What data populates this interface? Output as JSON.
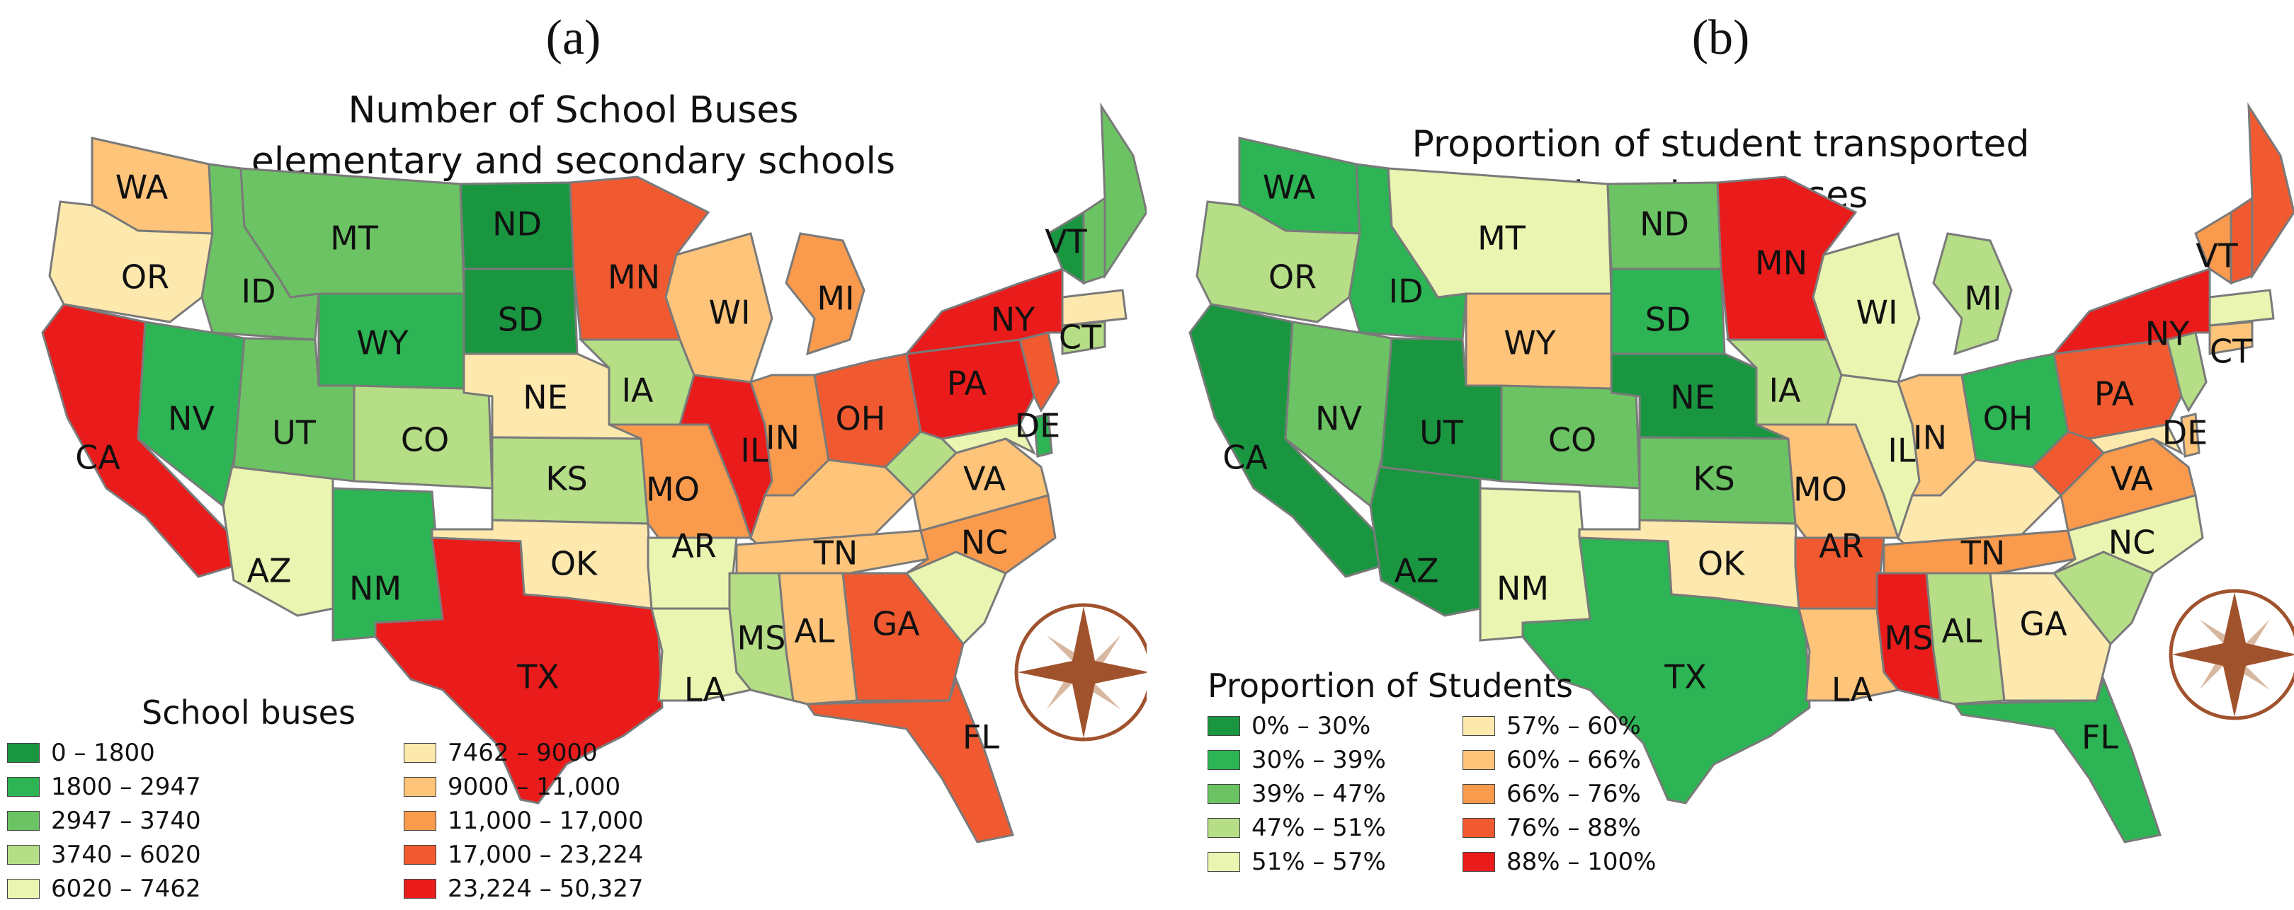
{
  "panels": [
    {
      "label": "(a)",
      "title_line1": "Number of School Buses",
      "title_line2": "elementary and secondary schools",
      "legend_title": "School buses",
      "legend": [
        {
          "label": "0 – 1800",
          "color": "#1a9641"
        },
        {
          "label": "1800 – 2947",
          "color": "#2db454"
        },
        {
          "label": "2947 – 3740",
          "color": "#6cc363"
        },
        {
          "label": "3740 – 6020",
          "color": "#b5de86"
        },
        {
          "label": "6020 – 7462",
          "color": "#e9f5b0"
        },
        {
          "label": "7462 – 9000",
          "color": "#fde8ae"
        },
        {
          "label": "9000 – 11,000",
          "color": "#fdc47a"
        },
        {
          "label": "11,000 – 17,000",
          "color": "#f99a4d"
        },
        {
          "label": "17,000 – 23,224",
          "color": "#f15a30"
        },
        {
          "label": "23,224 – 50,327",
          "color": "#ea1b1b"
        }
      ],
      "states": [
        {
          "id": "WA",
          "class": 6
        },
        {
          "id": "OR",
          "class": 5
        },
        {
          "id": "CA",
          "class": 9
        },
        {
          "id": "ID",
          "class": 2
        },
        {
          "id": "NV",
          "class": 1
        },
        {
          "id": "AZ",
          "class": 4
        },
        {
          "id": "MT",
          "class": 2
        },
        {
          "id": "WY",
          "class": 1
        },
        {
          "id": "UT",
          "class": 2
        },
        {
          "id": "CO",
          "class": 3
        },
        {
          "id": "NM",
          "class": 1
        },
        {
          "id": "ND",
          "class": 0
        },
        {
          "id": "SD",
          "class": 0
        },
        {
          "id": "NE",
          "class": 5
        },
        {
          "id": "KS",
          "class": 3
        },
        {
          "id": "OK",
          "class": 5
        },
        {
          "id": "TX",
          "class": 9
        },
        {
          "id": "MN",
          "class": 8
        },
        {
          "id": "IA",
          "class": 3
        },
        {
          "id": "MO",
          "class": 7
        },
        {
          "id": "AR",
          "class": 4
        },
        {
          "id": "LA",
          "class": 4
        },
        {
          "id": "WI",
          "class": 6
        },
        {
          "id": "IL",
          "class": 9
        },
        {
          "id": "MI",
          "class": 7
        },
        {
          "id": "IN",
          "class": 7
        },
        {
          "id": "OH",
          "class": 8
        },
        {
          "id": "KY",
          "class": 6
        },
        {
          "id": "TN",
          "class": 6
        },
        {
          "id": "MS",
          "class": 3
        },
        {
          "id": "AL",
          "class": 6
        },
        {
          "id": "GA",
          "class": 8
        },
        {
          "id": "FL",
          "class": 8
        },
        {
          "id": "SC",
          "class": 4
        },
        {
          "id": "NC",
          "class": 7
        },
        {
          "id": "VA",
          "class": 6
        },
        {
          "id": "WV",
          "class": 3
        },
        {
          "id": "PA",
          "class": 9
        },
        {
          "id": "NY",
          "class": 9
        },
        {
          "id": "VT",
          "class": 0
        },
        {
          "id": "NH",
          "class": 2
        },
        {
          "id": "ME",
          "class": 2
        },
        {
          "id": "MA",
          "class": 5
        },
        {
          "id": "CT",
          "class": 3
        },
        {
          "id": "NJ",
          "class": 8
        },
        {
          "id": "DE",
          "class": 1
        },
        {
          "id": "MD",
          "class": 4
        }
      ]
    },
    {
      "label": "(b)",
      "title_line1": "Proportion of student transported",
      "title_line2": "by school buses",
      "legend_title": "Proportion of Students",
      "legend": [
        {
          "label": "0% – 30%",
          "color": "#1a9641"
        },
        {
          "label": "30% – 39%",
          "color": "#2db454"
        },
        {
          "label": "39% – 47%",
          "color": "#6cc363"
        },
        {
          "label": "47% – 51%",
          "color": "#b5de86"
        },
        {
          "label": "51% – 57%",
          "color": "#e9f5b0"
        },
        {
          "label": "57% – 60%",
          "color": "#fde8ae"
        },
        {
          "label": "60% – 66%",
          "color": "#fdc47a"
        },
        {
          "label": "66% – 76%",
          "color": "#f99a4d"
        },
        {
          "label": "76% – 88%",
          "color": "#f15a30"
        },
        {
          "label": "88% – 100%",
          "color": "#ea1b1b"
        }
      ],
      "states": [
        {
          "id": "WA",
          "class": 1
        },
        {
          "id": "OR",
          "class": 3
        },
        {
          "id": "CA",
          "class": 0
        },
        {
          "id": "ID",
          "class": 1
        },
        {
          "id": "NV",
          "class": 2
        },
        {
          "id": "AZ",
          "class": 0
        },
        {
          "id": "MT",
          "class": 4
        },
        {
          "id": "WY",
          "class": 6
        },
        {
          "id": "UT",
          "class": 0
        },
        {
          "id": "CO",
          "class": 2
        },
        {
          "id": "NM",
          "class": 4
        },
        {
          "id": "ND",
          "class": 2
        },
        {
          "id": "SD",
          "class": 1
        },
        {
          "id": "NE",
          "class": 0
        },
        {
          "id": "KS",
          "class": 2
        },
        {
          "id": "OK",
          "class": 5
        },
        {
          "id": "TX",
          "class": 1
        },
        {
          "id": "MN",
          "class": 9
        },
        {
          "id": "IA",
          "class": 3
        },
        {
          "id": "MO",
          "class": 6
        },
        {
          "id": "AR",
          "class": 8
        },
        {
          "id": "LA",
          "class": 6
        },
        {
          "id": "WI",
          "class": 4
        },
        {
          "id": "IL",
          "class": 4
        },
        {
          "id": "MI",
          "class": 3
        },
        {
          "id": "IN",
          "class": 6
        },
        {
          "id": "OH",
          "class": 1
        },
        {
          "id": "KY",
          "class": 5
        },
        {
          "id": "TN",
          "class": 7
        },
        {
          "id": "MS",
          "class": 9
        },
        {
          "id": "AL",
          "class": 3
        },
        {
          "id": "GA",
          "class": 5
        },
        {
          "id": "FL",
          "class": 1
        },
        {
          "id": "SC",
          "class": 3
        },
        {
          "id": "NC",
          "class": 4
        },
        {
          "id": "VA",
          "class": 7
        },
        {
          "id": "WV",
          "class": 8
        },
        {
          "id": "PA",
          "class": 8
        },
        {
          "id": "NY",
          "class": 9
        },
        {
          "id": "VT",
          "class": 7
        },
        {
          "id": "NH",
          "class": 8
        },
        {
          "id": "ME",
          "class": 8
        },
        {
          "id": "MA",
          "class": 4
        },
        {
          "id": "CT",
          "class": 6
        },
        {
          "id": "NJ",
          "class": 3
        },
        {
          "id": "DE",
          "class": 6
        },
        {
          "id": "MD",
          "class": 5
        }
      ]
    }
  ],
  "labeled_states": [
    "WA",
    "OR",
    "CA",
    "ID",
    "NV",
    "AZ",
    "MT",
    "WY",
    "UT",
    "CO",
    "NM",
    "ND",
    "SD",
    "NE",
    "KS",
    "OK",
    "TX",
    "MN",
    "IA",
    "MO",
    "AR",
    "LA",
    "WI",
    "IL",
    "MI",
    "IN",
    "OH",
    "TN",
    "MS",
    "AL",
    "GA",
    "FL",
    "NC",
    "VA",
    "PA",
    "NY",
    "VT",
    "CT",
    "DE"
  ],
  "icon": "compass-rose-icon",
  "colors": {
    "border": "#7a7a7a",
    "compass_fill": "#a0522d",
    "compass_light": "#d8b8a0"
  }
}
